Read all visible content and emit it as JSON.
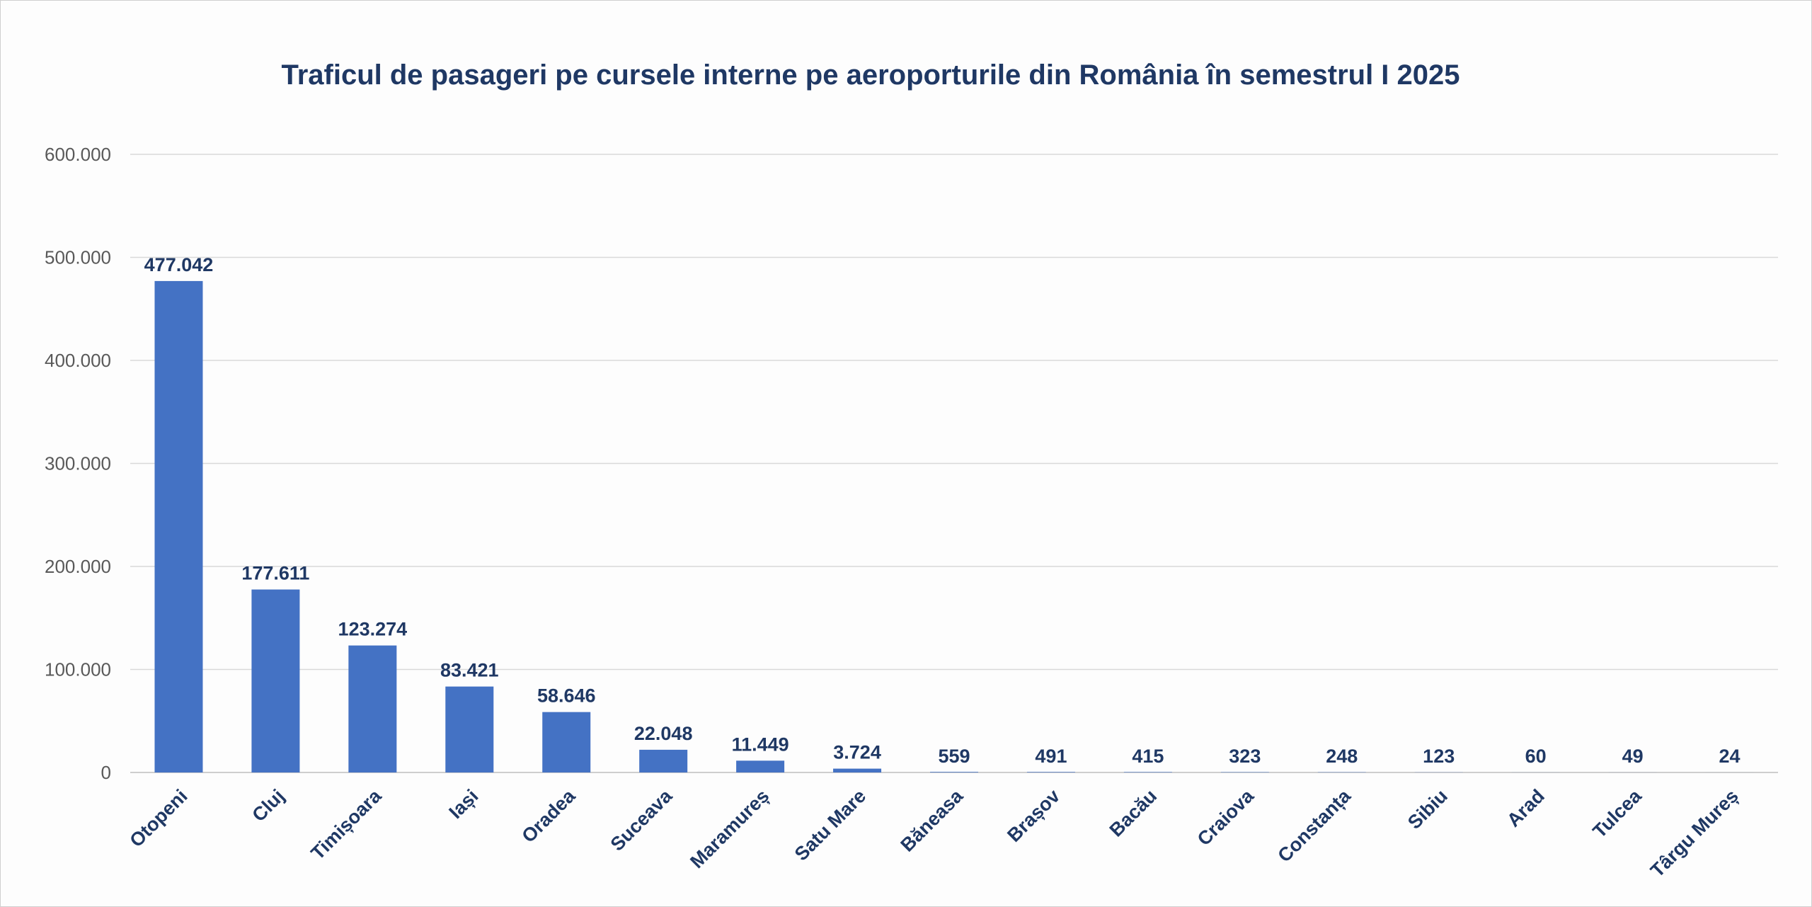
{
  "chart_data": {
    "type": "bar",
    "title": "Traficul de pasageri pe cursele interne pe aeroporturile din România în semestrul I 2025",
    "xlabel": "",
    "ylabel": "",
    "ylim": [
      0,
      600000
    ],
    "yticks": [
      0,
      100000,
      200000,
      300000,
      400000,
      500000,
      600000
    ],
    "ytick_labels": [
      "0",
      "100.000",
      "200.000",
      "300.000",
      "400.000",
      "500.000",
      "600.000"
    ],
    "grid": true,
    "legend": "none",
    "bar_color": "#4472c4",
    "categories": [
      "Otopeni",
      "Cluj",
      "Timișoara",
      "Iași",
      "Oradea",
      "Suceava",
      "Maramureș",
      "Satu Mare",
      "Băneasa",
      "Brașov",
      "Bacău",
      "Craiova",
      "Constanța",
      "Sibiu",
      "Arad",
      "Tulcea",
      "Târgu Mureș"
    ],
    "values": [
      477042,
      177611,
      123274,
      83421,
      58646,
      22048,
      11449,
      3724,
      559,
      491,
      415,
      323,
      248,
      123,
      60,
      49,
      24
    ],
    "value_labels": [
      "477.042",
      "177.611",
      "123.274",
      "83.421",
      "58.646",
      "22.048",
      "11.449",
      "3.724",
      "559",
      "491",
      "415",
      "323",
      "248",
      "123",
      "60",
      "49",
      "24"
    ]
  }
}
